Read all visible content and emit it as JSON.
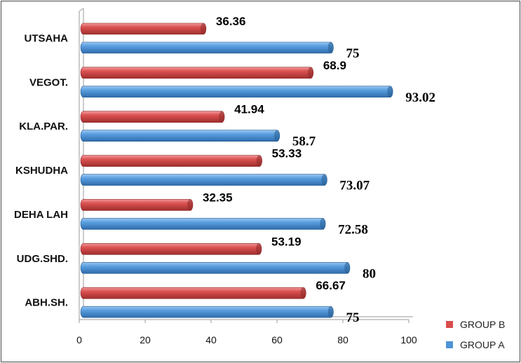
{
  "chart_data": {
    "type": "bar",
    "orientation": "horizontal",
    "categories": [
      "ABH.SH.",
      "UDG.SHD.",
      "DEHA LAH",
      "KSHUDHA",
      "KLA.PAR.",
      "VEGOT.",
      "UTSAHA"
    ],
    "series": [
      {
        "name": "GROUP A",
        "color": "#4f94d4",
        "values": [
          75,
          80,
          72.58,
          73.07,
          58.7,
          93.02,
          75
        ],
        "labels": [
          "75",
          "80",
          "72.58",
          "73.07",
          "58.7",
          "93.02",
          "75"
        ]
      },
      {
        "name": "GROUP B",
        "color": "#d94c4c",
        "values": [
          66.67,
          53.19,
          32.35,
          53.33,
          41.94,
          68.9,
          36.36
        ],
        "labels": [
          "66.67",
          "53.19",
          "32.35",
          "53.33",
          "41.94",
          "68.9",
          "36.36"
        ]
      }
    ],
    "xlim": [
      0,
      100
    ],
    "xticks": [
      "0",
      "20",
      "40",
      "60",
      "80",
      "100"
    ],
    "legend_position": "bottom-right",
    "style": "3d-cylinder"
  }
}
